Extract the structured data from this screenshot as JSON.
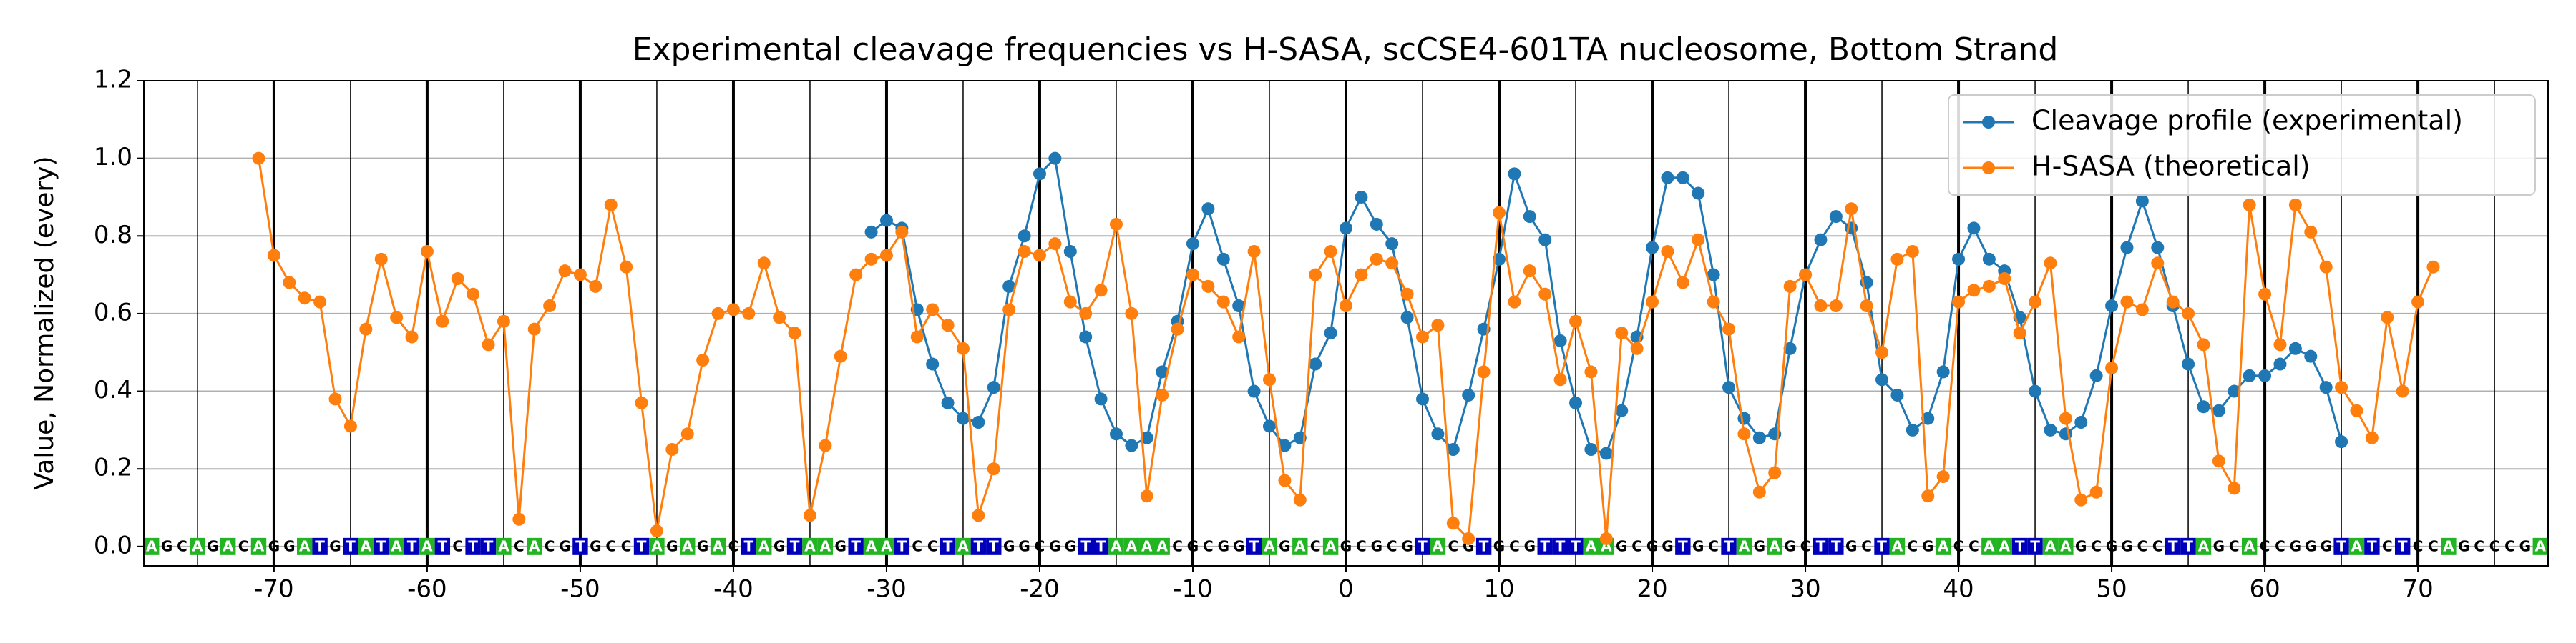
{
  "chart_data": {
    "type": "line",
    "title": "Experimental cleavage frequencies vs H-SASA, scCSE4-601TA nucleosome, Bottom Strand",
    "ylabel": "Value, Normalized (every)",
    "xlim": [
      -78.5,
      78.5
    ],
    "ylim": [
      -0.05,
      1.2
    ],
    "xticks": [
      -70,
      -60,
      -50,
      -40,
      -30,
      -20,
      -10,
      0,
      10,
      20,
      30,
      40,
      50,
      60,
      70
    ],
    "x_minor_grid": [
      -75,
      -65,
      -55,
      -45,
      -35,
      -25,
      -15,
      -5,
      5,
      15,
      25,
      35,
      45,
      55,
      65,
      75
    ],
    "yticks": [
      0.0,
      0.2,
      0.4,
      0.6,
      0.8,
      1.0,
      1.2
    ],
    "ytick_labels": [
      "0.0",
      "0.2",
      "0.4",
      "0.6",
      "0.8",
      "1.0",
      "1.2"
    ],
    "grid": true,
    "legend": "upper right",
    "sequence": "AGCAGACAGGATGTATATATCTTACACGTGCCTAGAGACTAGTAAGTAATCCTATTGGCGGTTAAAACGCGGTAGACAGCGCGTACGTGCGTTTAAGCGGTGCTAGAGCTTGCTACGACCAATTAAGCGGCCTTAGCACCGGGTATCTCCAGCCCGA",
    "sequence_start": -78,
    "base_colors": {
      "A": "#22b422",
      "T": "#0000bb"
    },
    "series": [
      {
        "name": "Cleavage profile (experimental)",
        "color": "#1f77b4",
        "x": [
          -31,
          -30,
          -29,
          -28,
          -27,
          -26,
          -25,
          -24,
          -23,
          -22,
          -21,
          -20,
          -19,
          -18,
          -17,
          -16,
          -15,
          -14,
          -13,
          -12,
          -11,
          -10,
          -9,
          -8,
          -7,
          -6,
          -5,
          -4,
          -3,
          -2,
          -1,
          0,
          1,
          2,
          3,
          4,
          5,
          6,
          7,
          8,
          9,
          10,
          11,
          12,
          13,
          14,
          15,
          16,
          17,
          18,
          19,
          20,
          21,
          22,
          23,
          24,
          25,
          26,
          27,
          28,
          29,
          30,
          31,
          32,
          33,
          34,
          35,
          36,
          37,
          38,
          39,
          40,
          41,
          42,
          43,
          44,
          45,
          46,
          47,
          48,
          49,
          50,
          51,
          52,
          53,
          54,
          55,
          56,
          57,
          58,
          59,
          60,
          61,
          62,
          63,
          64,
          65
        ],
        "values": [
          0.81,
          0.84,
          0.82,
          0.61,
          0.47,
          0.37,
          0.33,
          0.32,
          0.41,
          0.67,
          0.8,
          0.96,
          1.0,
          0.76,
          0.54,
          0.38,
          0.29,
          0.26,
          0.28,
          0.45,
          0.58,
          0.78,
          0.87,
          0.74,
          0.62,
          0.4,
          0.31,
          0.26,
          0.28,
          0.47,
          0.55,
          0.82,
          0.9,
          0.83,
          0.78,
          0.59,
          0.38,
          0.29,
          0.25,
          0.39,
          0.56,
          0.74,
          0.96,
          0.85,
          0.79,
          0.53,
          0.37,
          0.25,
          0.24,
          0.35,
          0.54,
          0.77,
          0.95,
          0.95,
          0.91,
          0.7,
          0.41,
          0.33,
          0.28,
          0.29,
          0.51,
          0.7,
          0.79,
          0.85,
          0.82,
          0.68,
          0.43,
          0.39,
          0.3,
          0.33,
          0.45,
          0.74,
          0.82,
          0.74,
          0.71,
          0.59,
          0.4,
          0.3,
          0.29,
          0.32,
          0.44,
          0.62,
          0.77,
          0.89,
          0.77,
          0.62,
          0.47,
          0.36,
          0.35,
          0.4,
          0.44,
          0.44,
          0.47,
          0.51,
          0.49,
          0.41,
          0.27
        ]
      },
      {
        "name": "H-SASA (theoretical)",
        "color": "#ff7f0e",
        "x": [
          -71,
          -70,
          -69,
          -68,
          -67,
          -66,
          -65,
          -64,
          -63,
          -62,
          -61,
          -60,
          -59,
          -58,
          -57,
          -56,
          -55,
          -54,
          -53,
          -52,
          -51,
          -50,
          -49,
          -48,
          -47,
          -46,
          -45,
          -44,
          -43,
          -42,
          -41,
          -40,
          -39,
          -38,
          -37,
          -36,
          -35,
          -34,
          -33,
          -32,
          -31,
          -30,
          -29,
          -28,
          -27,
          -26,
          -25,
          -24,
          -23,
          -22,
          -21,
          -20,
          -19,
          -18,
          -17,
          -16,
          -15,
          -14,
          -13,
          -12,
          -11,
          -10,
          -9,
          -8,
          -7,
          -6,
          -5,
          -4,
          -3,
          -2,
          -1,
          0,
          1,
          2,
          3,
          4,
          5,
          6,
          7,
          8,
          9,
          10,
          11,
          12,
          13,
          14,
          15,
          16,
          17,
          18,
          19,
          20,
          21,
          22,
          23,
          24,
          25,
          26,
          27,
          28,
          29,
          30,
          31,
          32,
          33,
          34,
          35,
          36,
          37,
          38,
          39,
          40,
          41,
          42,
          43,
          44,
          45,
          46,
          47,
          48,
          49,
          50,
          51,
          52,
          53,
          54,
          55,
          56,
          57,
          58,
          59,
          60,
          61,
          62,
          63,
          64,
          65,
          66,
          67,
          68,
          69,
          70,
          71
        ],
        "values": [
          1.0,
          0.75,
          0.68,
          0.64,
          0.63,
          0.38,
          0.31,
          0.56,
          0.74,
          0.59,
          0.54,
          0.76,
          0.58,
          0.69,
          0.65,
          0.52,
          0.58,
          0.07,
          0.56,
          0.62,
          0.71,
          0.7,
          0.67,
          0.88,
          0.72,
          0.37,
          0.04,
          0.25,
          0.29,
          0.48,
          0.6,
          0.61,
          0.6,
          0.73,
          0.59,
          0.55,
          0.08,
          0.26,
          0.49,
          0.7,
          0.74,
          0.75,
          0.81,
          0.54,
          0.61,
          0.57,
          0.51,
          0.08,
          0.2,
          0.61,
          0.76,
          0.75,
          0.78,
          0.63,
          0.6,
          0.66,
          0.83,
          0.6,
          0.13,
          0.39,
          0.56,
          0.7,
          0.67,
          0.63,
          0.54,
          0.76,
          0.43,
          0.17,
          0.12,
          0.7,
          0.76,
          0.62,
          0.7,
          0.74,
          0.73,
          0.65,
          0.54,
          0.57,
          0.06,
          0.02,
          0.45,
          0.86,
          0.63,
          0.71,
          0.65,
          0.43,
          0.58,
          0.45,
          0.02,
          0.55,
          0.51,
          0.63,
          0.76,
          0.68,
          0.79,
          0.63,
          0.56,
          0.29,
          0.14,
          0.19,
          0.67,
          0.7,
          0.62,
          0.62,
          0.87,
          0.62,
          0.5,
          0.74,
          0.76,
          0.13,
          0.18,
          0.63,
          0.66,
          0.67,
          0.69,
          0.55,
          0.63,
          0.73,
          0.33,
          0.12,
          0.14,
          0.46,
          0.63,
          0.61,
          0.73,
          0.63,
          0.6,
          0.52,
          0.22,
          0.15,
          0.88,
          0.65,
          0.52,
          0.88,
          0.81,
          0.72,
          0.41,
          0.35,
          0.28,
          0.59,
          0.4,
          0.63,
          0.72
        ]
      }
    ]
  }
}
